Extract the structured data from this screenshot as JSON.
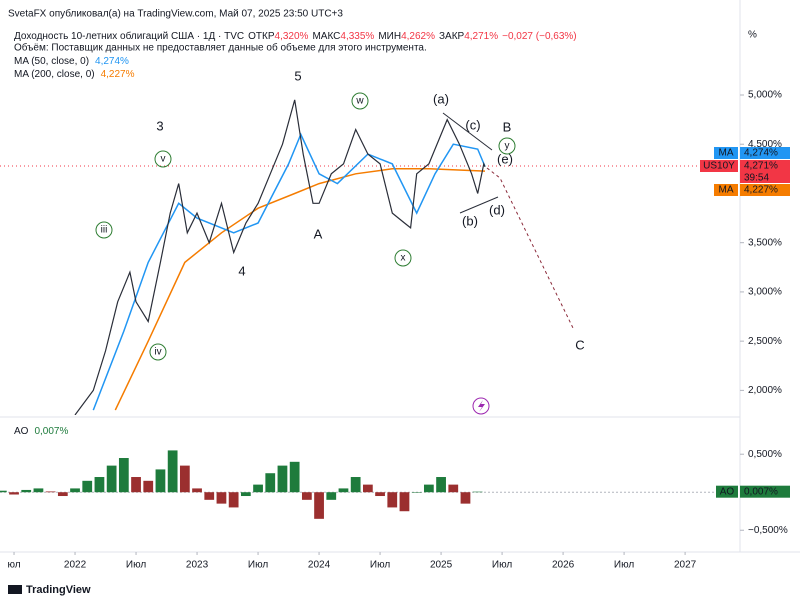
{
  "header": {
    "publisher": "SvetaFX опубликовал(а) на TradingView.com, Май 07, 2025 23:50 UTC+3",
    "symbol": "Доходность 10-летних облигаций США · 1Д · TVC",
    "ohlc": [
      {
        "label": "ОТКР",
        "value": "4,320%"
      },
      {
        "label": "МАКС",
        "value": "4,335%"
      },
      {
        "label": "МИН",
        "value": "4,262%"
      },
      {
        "label": "ЗАКР",
        "value": "4,271%"
      }
    ],
    "change": "−0,027 (−0,63%)",
    "volume_note": "Объём: Поставщик данных не предоставляет данные об объеме для этого инструмента."
  },
  "chart_data": [
    {
      "type": "line",
      "y_unit": "%",
      "xlim": [
        2021.385,
        2027.45
      ],
      "ylim": [
        1.75,
        5.66
      ],
      "xticks": [
        {
          "value": 2021.5,
          "label": "юл"
        },
        2022,
        {
          "value": 2022.5,
          "label": "Июл"
        },
        2023,
        {
          "value": 2023.5,
          "label": "Июл"
        },
        2024,
        {
          "value": 2024.5,
          "label": "Июл"
        },
        2025,
        {
          "value": 2025.5,
          "label": "Июл"
        },
        2026,
        {
          "value": 2026.5,
          "label": "Июл"
        },
        2027
      ],
      "yticks": [
        {
          "value": 2,
          "label": "2,000%"
        },
        {
          "value": 2.5,
          "label": "2,500%"
        },
        {
          "value": 3,
          "label": "3,000%"
        },
        {
          "value": 3.5,
          "label": "3,500%"
        },
        {
          "value": 4.5,
          "label": "4,500%"
        },
        {
          "value": 5,
          "label": "5,000%"
        }
      ],
      "series": [
        {
          "name": "US10Y",
          "color": "#2a2e39",
          "last_label": "4,271%",
          "x": [
            2022.0,
            2022.15,
            2022.25,
            2022.35,
            2022.45,
            2022.5,
            2022.6,
            2022.7,
            2022.78,
            2022.85,
            2022.92,
            2023.0,
            2023.1,
            2023.2,
            2023.3,
            2023.4,
            2023.5,
            2023.6,
            2023.7,
            2023.8,
            2023.87,
            2023.95,
            2024.0,
            2024.1,
            2024.2,
            2024.3,
            2024.4,
            2024.5,
            2024.6,
            2024.7,
            2024.75,
            2024.8,
            2024.9,
            2025.0,
            2025.05,
            2025.15,
            2025.25,
            2025.3,
            2025.35,
            2025.36
          ],
          "values": [
            1.75,
            2.0,
            2.4,
            2.9,
            3.2,
            2.9,
            2.7,
            3.3,
            3.8,
            4.1,
            3.6,
            3.8,
            3.5,
            3.9,
            3.4,
            3.7,
            3.9,
            4.2,
            4.5,
            4.95,
            4.4,
            3.9,
            3.9,
            4.2,
            4.3,
            4.65,
            4.4,
            4.3,
            3.8,
            3.7,
            3.65,
            4.2,
            4.3,
            4.6,
            4.75,
            4.5,
            4.2,
            4.0,
            4.3,
            4.271
          ]
        },
        {
          "name": "MA (50, close, 0)",
          "color": "#2196f3",
          "last_label": "4,274%",
          "x": [
            2022.15,
            2022.4,
            2022.6,
            2022.85,
            2023.0,
            2023.3,
            2023.5,
            2023.75,
            2023.85,
            2024.0,
            2024.15,
            2024.4,
            2024.6,
            2024.8,
            2024.95,
            2025.1,
            2025.3,
            2025.36
          ],
          "values": [
            1.8,
            2.6,
            3.3,
            3.9,
            3.75,
            3.6,
            3.7,
            4.3,
            4.6,
            4.2,
            4.1,
            4.4,
            4.3,
            3.8,
            4.2,
            4.5,
            4.45,
            4.274
          ]
        },
        {
          "name": "MA (200, close, 0)",
          "color": "#f57c00",
          "last_label": "4,227%",
          "x": [
            2022.33,
            2022.6,
            2022.9,
            2023.2,
            2023.5,
            2023.8,
            2024.0,
            2024.3,
            2024.6,
            2024.9,
            2025.36
          ],
          "values": [
            1.8,
            2.5,
            3.3,
            3.6,
            3.85,
            4.0,
            4.1,
            4.2,
            4.25,
            4.25,
            4.227
          ]
        }
      ],
      "tag_name": "MA",
      "countdown": "39:54",
      "annotations": [
        "3",
        "5",
        "4",
        "iii",
        "v",
        "iv",
        "w",
        "x",
        "y",
        "A",
        "B",
        "C",
        "(a)",
        "(b)",
        "(c)",
        "(d)",
        "(e)"
      ]
    },
    {
      "type": "bar",
      "name": "AO",
      "value_label": "0,007%",
      "up_color": "#1e7b3c",
      "down_color": "#9b2f2f",
      "xlim": [
        2021.385,
        2027.45
      ],
      "ylim": [
        -0.76,
        0.95
      ],
      "yticks": [
        {
          "value": -0.5,
          "label": "−0,500%"
        },
        {
          "value": 0.5,
          "label": "0,500%"
        }
      ],
      "x": [
        2021.4,
        2021.5,
        2021.6,
        2021.7,
        2021.8,
        2021.9,
        2022.0,
        2022.1,
        2022.2,
        2022.3,
        2022.4,
        2022.5,
        2022.6,
        2022.7,
        2022.8,
        2022.9,
        2023.0,
        2023.1,
        2023.2,
        2023.3,
        2023.4,
        2023.5,
        2023.6,
        2023.7,
        2023.8,
        2023.9,
        2024.0,
        2024.1,
        2024.2,
        2024.3,
        2024.4,
        2024.5,
        2024.6,
        2024.7,
        2024.8,
        2024.9,
        2025.0,
        2025.1,
        2025.2,
        2025.3
      ],
      "values": [
        0.02,
        -0.03,
        0.03,
        0.05,
        0.01,
        -0.05,
        0.05,
        0.15,
        0.2,
        0.35,
        0.45,
        0.2,
        0.15,
        0.3,
        0.55,
        0.35,
        0.05,
        -0.1,
        -0.15,
        -0.2,
        -0.05,
        0.1,
        0.25,
        0.35,
        0.4,
        -0.1,
        -0.35,
        -0.1,
        0.05,
        0.2,
        0.1,
        -0.05,
        -0.2,
        -0.25,
        0.0,
        0.1,
        0.2,
        0.1,
        -0.15,
        0.007
      ]
    }
  ],
  "footer": "TradingView"
}
